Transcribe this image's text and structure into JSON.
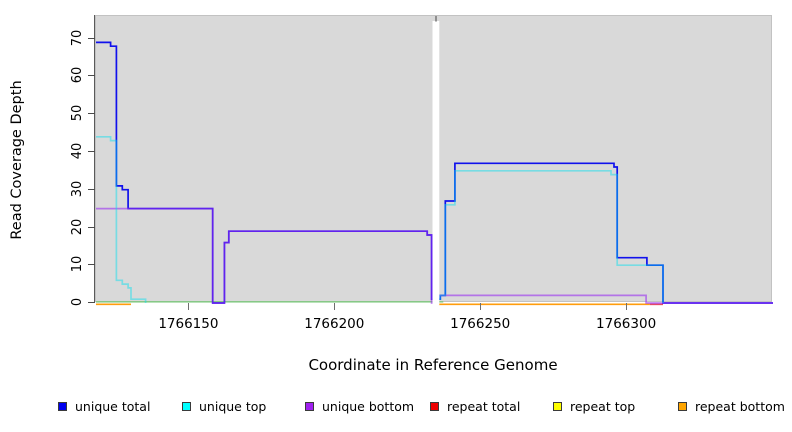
{
  "chart_data": {
    "type": "step-line",
    "title": "",
    "xlabel": "Coordinate in Reference Genome",
    "ylabel": "Read Coverage Depth",
    "xlim": [
      1766118,
      1766350
    ],
    "ylim": [
      0,
      76
    ],
    "x_ticks": [
      "1766150",
      "1766200",
      "1766250",
      "1766300"
    ],
    "y_ticks": [
      "0",
      "10",
      "20",
      "30",
      "40",
      "50",
      "60",
      "70"
    ],
    "plot_background": "#d9d9d9",
    "grid": false,
    "legend_position": "bottom",
    "gap_region": {
      "x_start": 1766233.5,
      "x_end": 1766235.5
    },
    "series": [
      {
        "id": "repeat-top",
        "legend_label": "repeat top",
        "legend_color": "#FFFF00",
        "line_color": "#7DC87D",
        "opacity": 0.85,
        "y_offset": -1.2,
        "segments": [
          [
            [
              1766118,
              0
            ],
            [
              1766237,
              0
            ]
          ]
        ]
      },
      {
        "id": "repeat-bottom",
        "legend_label": "repeat bottom",
        "legend_color": "#FFA500",
        "line_color": "#FF9800",
        "opacity": 0.95,
        "y_offset": 1.3,
        "segments": [
          [
            [
              1766118,
              0
            ],
            [
              1766130,
              0
            ]
          ],
          [
            [
              1766235.5,
              0
            ],
            [
              1766307.8,
              0
            ]
          ]
        ]
      },
      {
        "id": "repeat-total",
        "legend_label": "repeat total",
        "legend_color": "#EE0000",
        "line_color": "#DC143C",
        "opacity": 0.78,
        "y_offset": 1.3,
        "segments": [
          [
            [
              1766307.8,
              0
            ],
            [
              1766312.3,
              0
            ]
          ]
        ]
      },
      {
        "id": "unique-total",
        "legend_label": "unique total",
        "legend_color": "#0000EE",
        "line_color": "#0000EE",
        "opacity": 0.92,
        "y_offset": 0,
        "segments": [
          [
            [
              1766118,
              69
            ],
            [
              1766123,
              68
            ],
            [
              1766125,
              31
            ],
            [
              1766127,
              30
            ],
            [
              1766129,
              25
            ],
            [
              1766158,
              0
            ],
            [
              1766162,
              16
            ],
            [
              1766163.5,
              19
            ],
            [
              1766231.5,
              18
            ],
            [
              1766233,
              1
            ],
            [
              1766233.5,
              1
            ]
          ],
          [
            [
              1766235.5,
              1
            ],
            [
              1766236,
              2
            ],
            [
              1766237.7,
              27
            ],
            [
              1766241,
              37
            ],
            [
              1766295.5,
              36
            ],
            [
              1766296.6,
              12
            ],
            [
              1766306.8,
              10
            ],
            [
              1766312.3,
              0
            ],
            [
              1766350,
              0
            ]
          ]
        ]
      },
      {
        "id": "unique-bottom",
        "legend_label": "unique bottom",
        "legend_color": "#A020F0",
        "line_color": "#9A30F0",
        "opacity": 0.6,
        "y_offset": 0,
        "segments": [
          [
            [
              1766118,
              25
            ],
            [
              1766158,
              0
            ],
            [
              1766162,
              16
            ],
            [
              1766163.5,
              19
            ],
            [
              1766231.5,
              18
            ],
            [
              1766233,
              0
            ],
            [
              1766233.5,
              0
            ]
          ],
          [
            [
              1766235.5,
              2
            ],
            [
              1766306.5,
              0
            ],
            [
              1766350,
              0
            ]
          ]
        ]
      },
      {
        "id": "unique-top",
        "legend_label": "unique top",
        "legend_color": "#00FFFF",
        "line_color": "#00E0F0",
        "opacity": 0.45,
        "y_offset": 0,
        "segments": [
          [
            [
              1766118,
              44
            ],
            [
              1766123,
              43
            ],
            [
              1766125,
              6
            ],
            [
              1766127,
              5
            ],
            [
              1766129,
              4
            ],
            [
              1766130,
              1
            ],
            [
              1766135,
              0
            ]
          ],
          [
            [
              1766235.5,
              1
            ],
            [
              1766236,
              2
            ],
            [
              1766237.7,
              26
            ],
            [
              1766241,
              35
            ],
            [
              1766294.5,
              34
            ],
            [
              1766296.6,
              10
            ],
            [
              1766312.3,
              0
            ]
          ]
        ]
      }
    ]
  }
}
